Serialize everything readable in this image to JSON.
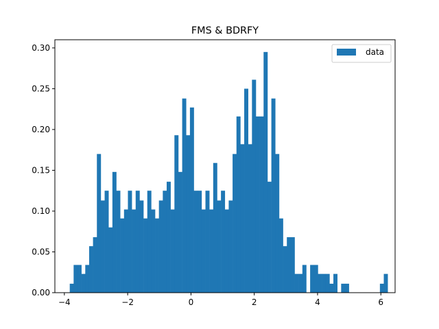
{
  "chart_data": {
    "type": "bar",
    "title": "FMS & BDRFY",
    "xlabel": "",
    "ylabel": "",
    "xlim": [
      -4.3,
      6.45
    ],
    "ylim": [
      0,
      0.31
    ],
    "xticks": [
      -4,
      -2,
      0,
      2,
      4,
      6
    ],
    "xtick_labels": [
      "−4",
      "−2",
      "0",
      "2",
      "4",
      "6"
    ],
    "yticks": [
      0,
      0.05,
      0.1,
      0.15,
      0.2,
      0.25,
      0.3
    ],
    "ytick_labels": [
      "0.00",
      "0.05",
      "0.10",
      "0.15",
      "0.20",
      "0.25",
      "0.30"
    ],
    "legend": {
      "placement": "top-right",
      "entries": [
        "data"
      ]
    },
    "grid": false,
    "bin_start": -3.83,
    "bin_width": 0.1225,
    "series": [
      {
        "name": "data",
        "color": "#1f77b4",
        "values": [
          0.011,
          0.034,
          0.034,
          0.023,
          0.034,
          0.057,
          0.068,
          0.17,
          0.113,
          0.125,
          0.08,
          0.148,
          0.125,
          0.091,
          0.102,
          0.125,
          0.102,
          0.125,
          0.113,
          0.091,
          0.125,
          0.102,
          0.091,
          0.113,
          0.125,
          0.136,
          0.102,
          0.193,
          0.148,
          0.238,
          0.193,
          0.227,
          0.125,
          0.125,
          0.102,
          0.125,
          0.102,
          0.159,
          0.113,
          0.125,
          0.102,
          0.113,
          0.17,
          0.216,
          0.182,
          0.25,
          0.182,
          0.261,
          0.216,
          0.216,
          0.295,
          0.136,
          0.238,
          0.17,
          0.091,
          0.057,
          0.068,
          0.068,
          0.023,
          0.023,
          0.034,
          0.0,
          0.034,
          0.034,
          0.023,
          0.023,
          0.023,
          0.011,
          0.023,
          0.0,
          0.011,
          0.011,
          0.0,
          0.0,
          0.0,
          0.0,
          0.0,
          0.0,
          0.0,
          0.0,
          0.011,
          0.023
        ]
      }
    ]
  }
}
